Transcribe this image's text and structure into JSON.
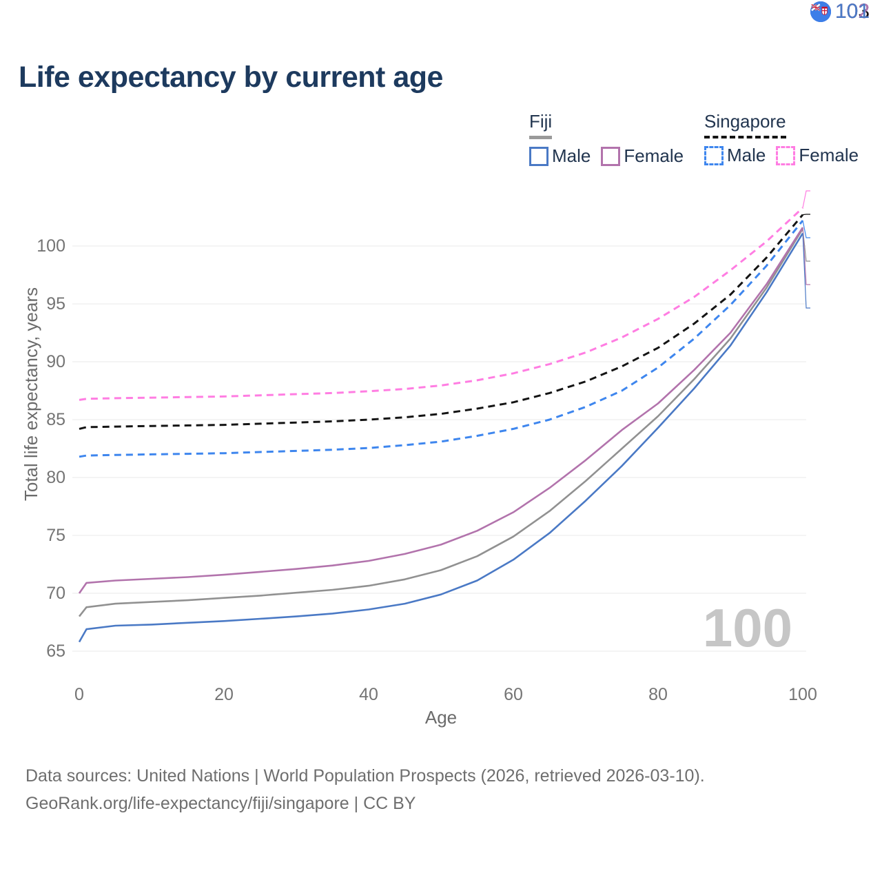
{
  "title": "Life expectancy by current age",
  "legend": {
    "groups": [
      {
        "title": "Fiji",
        "line_style": "solid",
        "underline_color": "#9a9a9a",
        "items": [
          {
            "label": "Male",
            "color": "#4a79c5"
          },
          {
            "label": "Female",
            "color": "#b273ac"
          }
        ]
      },
      {
        "title": "Singapore",
        "line_style": "dashed",
        "underline_color": "#141414",
        "items": [
          {
            "label": "Male",
            "color": "#3e86ee"
          },
          {
            "label": "Female",
            "color": "#ff7de2"
          }
        ]
      }
    ]
  },
  "watermark": "100",
  "axes": {
    "y": {
      "title": "Total life expectancy, years",
      "ticks": [
        "100",
        "95",
        "90",
        "85",
        "80",
        "75",
        "70",
        "65"
      ]
    },
    "x": {
      "title": "Age",
      "ticks": [
        "0",
        "20",
        "40",
        "60",
        "80",
        "100"
      ]
    }
  },
  "right_labels": [
    {
      "value": "103",
      "color": "#ff7de2",
      "flag": "singapore-flag-icon",
      "series": "Singapore Female"
    },
    {
      "value": "103",
      "color": "#141414",
      "flag": "singapore-flag-icon",
      "series": "Singapore"
    },
    {
      "value": "102",
      "color": "#3e86ee",
      "flag": "singapore-flag-icon",
      "series": "Singapore Male"
    },
    {
      "value": "102",
      "color": "#9a9a9a",
      "flag": "fiji-flag-icon",
      "series": "Fiji"
    },
    {
      "value": "102",
      "color": "#b273ac",
      "flag": "fiji-flag-icon",
      "series": "Fiji Female"
    },
    {
      "value": "101",
      "color": "#4a79c5",
      "flag": "fiji-flag-icon",
      "series": "Fiji Male"
    }
  ],
  "footer": {
    "line1": "Data sources: United Nations | World Population Prospects (2026, retrieved 2026-03-10).",
    "line2": "GeoRank.org/life-expectancy/fiji/singapore | CC BY"
  },
  "chart_data": {
    "type": "line",
    "title": "Life expectancy by current age",
    "xlabel": "Age",
    "ylabel": "Total life expectancy, years",
    "xlim": [
      0,
      100
    ],
    "ylim": [
      63.5,
      104.5
    ],
    "xticks": [
      0,
      20,
      40,
      60,
      80,
      100
    ],
    "yticks": [
      65,
      70,
      75,
      80,
      85,
      90,
      95,
      100
    ],
    "grid": "horizontal",
    "legend_position": "top-right",
    "x": [
      0,
      1,
      5,
      10,
      15,
      20,
      25,
      30,
      35,
      40,
      45,
      50,
      55,
      60,
      65,
      70,
      75,
      80,
      85,
      90,
      95,
      100
    ],
    "series": [
      {
        "name": "Singapore Female",
        "country": "Singapore",
        "sex": "Female",
        "color": "#ff7de2",
        "dash": true,
        "values": [
          86.7,
          86.8,
          86.85,
          86.9,
          86.95,
          87.0,
          87.1,
          87.2,
          87.3,
          87.45,
          87.65,
          87.95,
          88.4,
          89.0,
          89.8,
          90.8,
          92.1,
          93.7,
          95.6,
          97.9,
          100.4,
          103.3
        ]
      },
      {
        "name": "Singapore",
        "country": "Singapore",
        "sex": "Both",
        "color": "#141414",
        "dash": true,
        "values": [
          84.2,
          84.35,
          84.4,
          84.45,
          84.5,
          84.55,
          84.65,
          84.75,
          84.85,
          85.0,
          85.2,
          85.5,
          85.95,
          86.5,
          87.3,
          88.3,
          89.6,
          91.2,
          93.3,
          95.8,
          99.0,
          102.7
        ]
      },
      {
        "name": "Singapore Male",
        "country": "Singapore",
        "sex": "Male",
        "color": "#3e86ee",
        "dash": true,
        "values": [
          81.8,
          81.9,
          81.95,
          82.0,
          82.05,
          82.1,
          82.2,
          82.3,
          82.4,
          82.55,
          82.8,
          83.1,
          83.6,
          84.2,
          85.0,
          86.1,
          87.5,
          89.5,
          92.0,
          94.9,
          98.3,
          102.2
        ]
      },
      {
        "name": "Fiji",
        "country": "Fiji",
        "sex": "Both",
        "color": "#919191",
        "dash": false,
        "values": [
          68.0,
          68.8,
          69.1,
          69.25,
          69.4,
          69.6,
          69.8,
          70.05,
          70.3,
          70.65,
          71.2,
          72.0,
          73.2,
          74.9,
          77.1,
          79.7,
          82.5,
          85.3,
          88.5,
          92.0,
          96.4,
          101.5
        ]
      },
      {
        "name": "Fiji Female",
        "country": "Fiji",
        "sex": "Female",
        "color": "#b273ac",
        "dash": false,
        "values": [
          70.0,
          70.9,
          71.1,
          71.25,
          71.4,
          71.6,
          71.85,
          72.1,
          72.4,
          72.8,
          73.4,
          74.2,
          75.4,
          77.0,
          79.1,
          81.5,
          84.1,
          86.4,
          89.3,
          92.5,
          96.7,
          101.6
        ]
      },
      {
        "name": "Fiji Male",
        "country": "Fiji",
        "sex": "Male",
        "color": "#4a79c5",
        "dash": false,
        "values": [
          65.8,
          66.9,
          67.2,
          67.3,
          67.45,
          67.6,
          67.8,
          68.0,
          68.25,
          68.6,
          69.1,
          69.9,
          71.1,
          72.9,
          75.2,
          78.0,
          81.0,
          84.3,
          87.7,
          91.4,
          96.0,
          101.1
        ]
      }
    ],
    "end_labels": [
      103,
      103,
      102,
      102,
      102,
      101
    ]
  }
}
